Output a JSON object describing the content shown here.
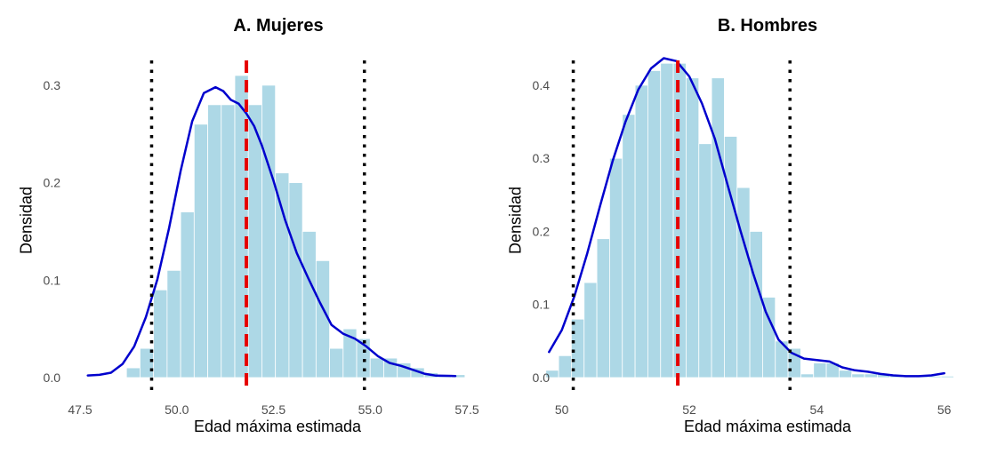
{
  "chart_data": [
    {
      "type": "bar",
      "title": "A. Mujeres",
      "xlabel": "Edad máxima estimada",
      "ylabel": "Densidad",
      "xlim": [
        47.5,
        57.5
      ],
      "ylim": [
        0,
        0.33
      ],
      "xticks": [
        {
          "value": 47.5,
          "label": "47.5"
        },
        {
          "value": 50.0,
          "label": "50.0"
        },
        {
          "value": 52.5,
          "label": "52.5"
        },
        {
          "value": 55.0,
          "label": "55.0"
        },
        {
          "value": 57.5,
          "label": "57.5"
        }
      ],
      "yticks": [
        {
          "value": 0.0,
          "label": "0.0"
        },
        {
          "value": 0.1,
          "label": "0.1"
        },
        {
          "value": 0.2,
          "label": "0.2"
        },
        {
          "value": 0.3,
          "label": "0.3"
        }
      ],
      "grid": false,
      "histogram": {
        "bin_width": 0.35,
        "bin_starts": [
          48.7,
          49.05,
          49.4,
          49.75,
          50.1,
          50.45,
          50.8,
          51.15,
          51.5,
          51.85,
          52.2,
          52.55,
          52.9,
          53.25,
          53.6,
          53.95,
          54.3,
          54.65,
          55.0,
          55.35,
          55.7,
          56.05,
          56.4,
          56.75,
          57.1
        ],
        "values": [
          0.01,
          0.03,
          0.09,
          0.11,
          0.17,
          0.26,
          0.28,
          0.28,
          0.31,
          0.28,
          0.3,
          0.21,
          0.2,
          0.15,
          0.12,
          0.03,
          0.05,
          0.04,
          0.02,
          0.02,
          0.015,
          0.01,
          0.005,
          0.003,
          0.003
        ],
        "color": "#add8e6"
      },
      "density": {
        "x": [
          47.7,
          48.0,
          48.3,
          48.6,
          48.9,
          49.2,
          49.5,
          49.8,
          50.1,
          50.4,
          50.7,
          51.0,
          51.2,
          51.4,
          51.6,
          51.8,
          52.0,
          52.2,
          52.5,
          52.8,
          53.1,
          53.4,
          53.7,
          54.0,
          54.3,
          54.6,
          54.9,
          55.2,
          55.5,
          55.8,
          56.1,
          56.4,
          56.7,
          57.0,
          57.2
        ],
        "y": [
          0.0022,
          0.0028,
          0.005,
          0.014,
          0.032,
          0.062,
          0.101,
          0.153,
          0.212,
          0.263,
          0.292,
          0.298,
          0.294,
          0.285,
          0.281,
          0.271,
          0.258,
          0.238,
          0.202,
          0.162,
          0.128,
          0.102,
          0.077,
          0.054,
          0.045,
          0.04,
          0.032,
          0.022,
          0.015,
          0.012,
          0.008,
          0.004,
          0.002,
          0.0018,
          0.0016
        ],
        "color": "#0000cd"
      },
      "reference_lines": [
        {
          "x": 49.35,
          "style": "dotted",
          "color": "#000000"
        },
        {
          "x": 51.8,
          "style": "dashed",
          "color": "#e60000"
        },
        {
          "x": 54.85,
          "style": "dotted",
          "color": "#000000"
        }
      ]
    },
    {
      "type": "bar",
      "title": "B. Hombres",
      "xlabel": "Edad máxima estimada",
      "ylabel": "Densidad",
      "xlim": [
        49.6,
        56.2
      ],
      "ylim": [
        0,
        0.44
      ],
      "xticks": [
        {
          "value": 50,
          "label": "50"
        },
        {
          "value": 52,
          "label": "52"
        },
        {
          "value": 54,
          "label": "54"
        },
        {
          "value": 56,
          "label": "56"
        }
      ],
      "yticks": [
        {
          "value": 0.0,
          "label": "0.0"
        },
        {
          "value": 0.1,
          "label": "0.1"
        },
        {
          "value": 0.2,
          "label": "0.2"
        },
        {
          "value": 0.3,
          "label": "0.3"
        },
        {
          "value": 0.4,
          "label": "0.4"
        }
      ],
      "grid": false,
      "histogram": {
        "bin_width": 0.2,
        "bin_starts": [
          49.75,
          49.95,
          50.15,
          50.35,
          50.55,
          50.75,
          50.95,
          51.15,
          51.35,
          51.55,
          51.75,
          51.95,
          52.15,
          52.35,
          52.55,
          52.75,
          52.95,
          53.15,
          53.35,
          53.55,
          53.75,
          53.95,
          54.15,
          54.35,
          54.55,
          54.75,
          54.95,
          55.15,
          55.35,
          55.55,
          55.75,
          55.95
        ],
        "values": [
          0.01,
          0.03,
          0.08,
          0.13,
          0.19,
          0.3,
          0.36,
          0.4,
          0.42,
          0.43,
          0.43,
          0.41,
          0.32,
          0.41,
          0.33,
          0.26,
          0.2,
          0.11,
          0.05,
          0.04,
          0.005,
          0.02,
          0.02,
          0.01,
          0.005,
          0.005,
          0.005,
          0.003,
          0.002,
          0.002,
          0.002,
          0.002
        ],
        "color": "#add8e6"
      },
      "density": {
        "x": [
          49.8,
          50.0,
          50.2,
          50.4,
          50.6,
          50.8,
          51.0,
          51.2,
          51.4,
          51.6,
          51.8,
          52.0,
          52.2,
          52.4,
          52.6,
          52.8,
          53.0,
          53.2,
          53.4,
          53.6,
          53.8,
          54.0,
          54.2,
          54.4,
          54.6,
          54.8,
          55.0,
          55.2,
          55.4,
          55.6,
          55.8,
          56.0
        ],
        "y": [
          0.035,
          0.065,
          0.112,
          0.17,
          0.235,
          0.297,
          0.35,
          0.394,
          0.423,
          0.437,
          0.433,
          0.412,
          0.375,
          0.327,
          0.264,
          0.202,
          0.143,
          0.09,
          0.052,
          0.034,
          0.026,
          0.024,
          0.022,
          0.014,
          0.01,
          0.008,
          0.005,
          0.003,
          0.002,
          0.002,
          0.003,
          0.006
        ],
        "color": "#0000cd"
      },
      "reference_lines": [
        {
          "x": 50.18,
          "style": "dotted",
          "color": "#000000"
        },
        {
          "x": 51.82,
          "style": "dashed",
          "color": "#e60000"
        },
        {
          "x": 53.58,
          "style": "dotted",
          "color": "#000000"
        }
      ]
    }
  ]
}
